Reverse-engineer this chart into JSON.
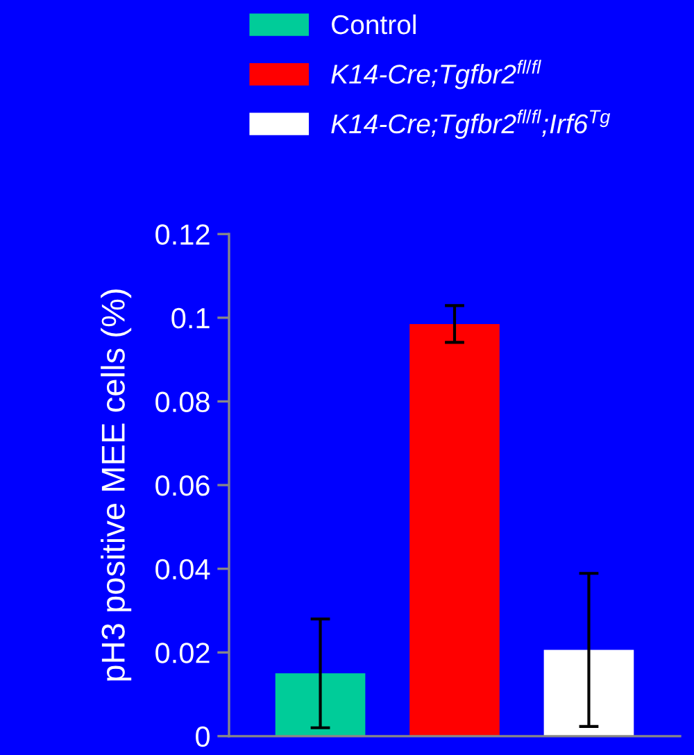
{
  "chart_data": {
    "type": "bar",
    "ylabel": "pH3 positive MEE cells (%)",
    "categories": [
      null
    ],
    "series": [
      {
        "name": "Control",
        "color": "#00cc99",
        "values": [
          0.015
        ],
        "errors": [
          0.013
        ]
      },
      {
        "name": "K14-Cre;Tgfbr2$^{fl/fl}$",
        "color": "#ff0000",
        "values": [
          0.0985
        ],
        "errors": [
          0.0044
        ]
      },
      {
        "name": "K14-Cre;Tgfbr2$^{fl/fl}$;Irf6$^{Tg}$",
        "color": "#ffffff",
        "values": [
          0.0206
        ],
        "errors": [
          0.0183
        ]
      }
    ],
    "ylim": [
      0,
      0.12
    ],
    "yticks": [
      0,
      0.02,
      0.04,
      0.06,
      0.08,
      0.1,
      0.12
    ],
    "tick_labels": "y",
    "legend": "top",
    "grid": false
  }
}
